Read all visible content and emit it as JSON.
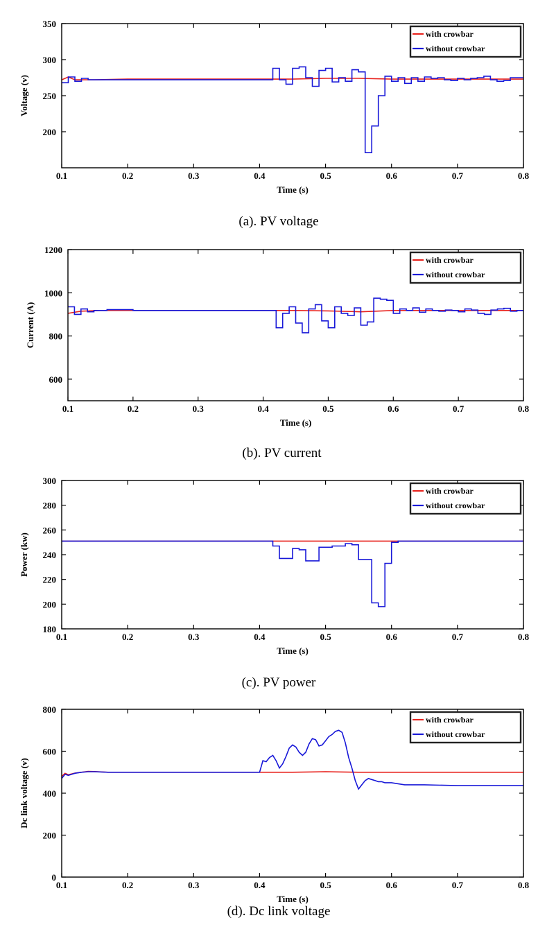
{
  "chart_data": [
    {
      "type": "line",
      "caption": "(a). PV voltage",
      "xlabel": "Time (s)",
      "ylabel": "Voltage (v)",
      "xlim": [
        0.1,
        0.8
      ],
      "ylim": [
        150,
        350
      ],
      "xticks": [
        0.1,
        0.2,
        0.3,
        0.4,
        0.5,
        0.6,
        0.7,
        0.8
      ],
      "yticks": [
        200,
        250,
        300,
        350
      ],
      "legend_position": "top-right",
      "colors": {
        "with crowbar": "#e8231e",
        "without crowbar": "#1818d8"
      },
      "series": [
        {
          "name": "with crowbar",
          "step": false,
          "x": [
            0.1,
            0.11,
            0.12,
            0.15,
            0.2,
            0.3,
            0.4,
            0.45,
            0.5,
            0.55,
            0.6,
            0.65,
            0.7,
            0.75,
            0.8
          ],
          "y": [
            272,
            276,
            272,
            272,
            273,
            273,
            273,
            273,
            274,
            274,
            273,
            273,
            273,
            273,
            273
          ]
        },
        {
          "name": "without crowbar",
          "step": true,
          "x": [
            0.1,
            0.11,
            0.12,
            0.13,
            0.14,
            0.2,
            0.3,
            0.41,
            0.42,
            0.43,
            0.44,
            0.45,
            0.46,
            0.47,
            0.48,
            0.49,
            0.5,
            0.51,
            0.52,
            0.53,
            0.54,
            0.55,
            0.56,
            0.57,
            0.58,
            0.59,
            0.6,
            0.61,
            0.62,
            0.63,
            0.64,
            0.65,
            0.66,
            0.67,
            0.68,
            0.69,
            0.7,
            0.71,
            0.72,
            0.73,
            0.74,
            0.75,
            0.76,
            0.77,
            0.78,
            0.79,
            0.8
          ],
          "y": [
            268,
            276,
            270,
            274,
            272,
            272,
            272,
            272,
            288,
            272,
            266,
            288,
            290,
            275,
            263,
            285,
            288,
            269,
            275,
            270,
            286,
            283,
            171,
            208,
            250,
            277,
            270,
            275,
            267,
            275,
            270,
            276,
            274,
            275,
            272,
            271,
            274,
            272,
            274,
            275,
            277,
            272,
            270,
            271,
            275,
            275,
            275
          ]
        }
      ]
    },
    {
      "type": "line",
      "caption": "(b). PV current",
      "xlabel": "Time (s)",
      "ylabel": "Current (A)",
      "xlim": [
        0.1,
        0.8
      ],
      "ylim": [
        500,
        1200
      ],
      "xticks": [
        0.1,
        0.2,
        0.3,
        0.4,
        0.5,
        0.6,
        0.7,
        0.8
      ],
      "yticks": [
        600,
        800,
        1000,
        1200
      ],
      "legend_position": "top-right",
      "colors": {
        "with crowbar": "#e8231e",
        "without crowbar": "#1818d8"
      },
      "series": [
        {
          "name": "with crowbar",
          "step": false,
          "x": [
            0.1,
            0.12,
            0.15,
            0.2,
            0.3,
            0.4,
            0.45,
            0.5,
            0.55,
            0.6,
            0.65,
            0.7,
            0.75,
            0.8
          ],
          "y": [
            905,
            915,
            918,
            918,
            918,
            918,
            918,
            916,
            912,
            918,
            918,
            918,
            918,
            918
          ]
        },
        {
          "name": "without crowbar",
          "step": true,
          "x": [
            0.1,
            0.11,
            0.12,
            0.13,
            0.14,
            0.16,
            0.2,
            0.3,
            0.41,
            0.42,
            0.43,
            0.44,
            0.45,
            0.46,
            0.47,
            0.48,
            0.49,
            0.5,
            0.51,
            0.52,
            0.53,
            0.54,
            0.55,
            0.56,
            0.57,
            0.58,
            0.59,
            0.6,
            0.61,
            0.62,
            0.63,
            0.64,
            0.65,
            0.66,
            0.67,
            0.68,
            0.69,
            0.7,
            0.71,
            0.72,
            0.73,
            0.74,
            0.75,
            0.76,
            0.77,
            0.78,
            0.79,
            0.8
          ],
          "y": [
            935,
            900,
            925,
            912,
            918,
            922,
            918,
            918,
            918,
            838,
            905,
            935,
            860,
            815,
            925,
            945,
            870,
            838,
            935,
            905,
            895,
            930,
            850,
            865,
            975,
            970,
            965,
            905,
            925,
            918,
            930,
            910,
            925,
            918,
            915,
            920,
            918,
            912,
            925,
            920,
            905,
            900,
            920,
            925,
            928,
            915,
            918,
            918
          ]
        }
      ]
    },
    {
      "type": "line",
      "caption": "(c). PV power",
      "xlabel": "Time (s)",
      "ylabel": "Power (kw)",
      "xlim": [
        0.1,
        0.8
      ],
      "ylim": [
        180,
        300
      ],
      "xticks": [
        0.1,
        0.2,
        0.3,
        0.4,
        0.5,
        0.6,
        0.7,
        0.8
      ],
      "yticks": [
        180,
        200,
        220,
        240,
        260,
        280,
        300
      ],
      "legend_position": "top-right",
      "colors": {
        "with crowbar": "#e8231e",
        "without crowbar": "#1818d8"
      },
      "series": [
        {
          "name": "with crowbar",
          "step": false,
          "x": [
            0.1,
            0.8
          ],
          "y": [
            251,
            251
          ]
        },
        {
          "name": "without crowbar",
          "step": true,
          "x": [
            0.1,
            0.41,
            0.42,
            0.43,
            0.44,
            0.45,
            0.46,
            0.47,
            0.48,
            0.49,
            0.5,
            0.51,
            0.52,
            0.53,
            0.54,
            0.55,
            0.56,
            0.57,
            0.58,
            0.59,
            0.6,
            0.61,
            0.62,
            0.63,
            0.64,
            0.8
          ],
          "y": [
            251,
            251,
            247,
            237,
            237,
            245,
            244,
            235,
            235,
            246,
            246,
            247,
            247,
            249,
            248,
            236,
            236,
            201,
            198,
            233,
            250,
            251,
            251,
            251,
            251,
            251
          ]
        }
      ]
    },
    {
      "type": "line",
      "caption": "(d). Dc link voltage",
      "xlabel": "Time (s)",
      "ylabel": "Dc link voltage (v)",
      "xlim": [
        0.1,
        0.8
      ],
      "ylim": [
        0,
        800
      ],
      "xticks": [
        0.1,
        0.2,
        0.3,
        0.4,
        0.5,
        0.6,
        0.7,
        0.8
      ],
      "yticks": [
        0,
        200,
        400,
        600,
        800
      ],
      "legend_position": "top-right",
      "colors": {
        "with crowbar": "#e8231e",
        "without crowbar": "#1818d8"
      },
      "series": [
        {
          "name": "with crowbar",
          "step": false,
          "x": [
            0.1,
            0.105,
            0.11,
            0.12,
            0.13,
            0.14,
            0.15,
            0.17,
            0.2,
            0.4,
            0.45,
            0.5,
            0.55,
            0.6,
            0.8
          ],
          "y": [
            480,
            495,
            488,
            496,
            500,
            504,
            503,
            500,
            500,
            500,
            500,
            502,
            500,
            500,
            500
          ]
        },
        {
          "name": "without crowbar",
          "step": false,
          "x": [
            0.1,
            0.105,
            0.11,
            0.12,
            0.13,
            0.14,
            0.15,
            0.17,
            0.2,
            0.3,
            0.4,
            0.405,
            0.41,
            0.415,
            0.42,
            0.425,
            0.43,
            0.435,
            0.44,
            0.445,
            0.45,
            0.455,
            0.46,
            0.465,
            0.47,
            0.475,
            0.48,
            0.485,
            0.49,
            0.495,
            0.5,
            0.505,
            0.51,
            0.515,
            0.52,
            0.525,
            0.53,
            0.535,
            0.54,
            0.545,
            0.55,
            0.555,
            0.56,
            0.565,
            0.57,
            0.575,
            0.58,
            0.585,
            0.59,
            0.6,
            0.61,
            0.62,
            0.65,
            0.7,
            0.75,
            0.8
          ],
          "y": [
            470,
            490,
            485,
            495,
            500,
            502,
            502,
            500,
            500,
            500,
            500,
            555,
            550,
            570,
            580,
            555,
            520,
            540,
            575,
            615,
            630,
            620,
            595,
            580,
            595,
            635,
            660,
            655,
            625,
            630,
            650,
            670,
            680,
            695,
            700,
            690,
            640,
            570,
            520,
            460,
            420,
            440,
            460,
            470,
            465,
            460,
            455,
            455,
            450,
            450,
            445,
            440,
            440,
            436,
            436,
            436
          ]
        }
      ]
    }
  ]
}
